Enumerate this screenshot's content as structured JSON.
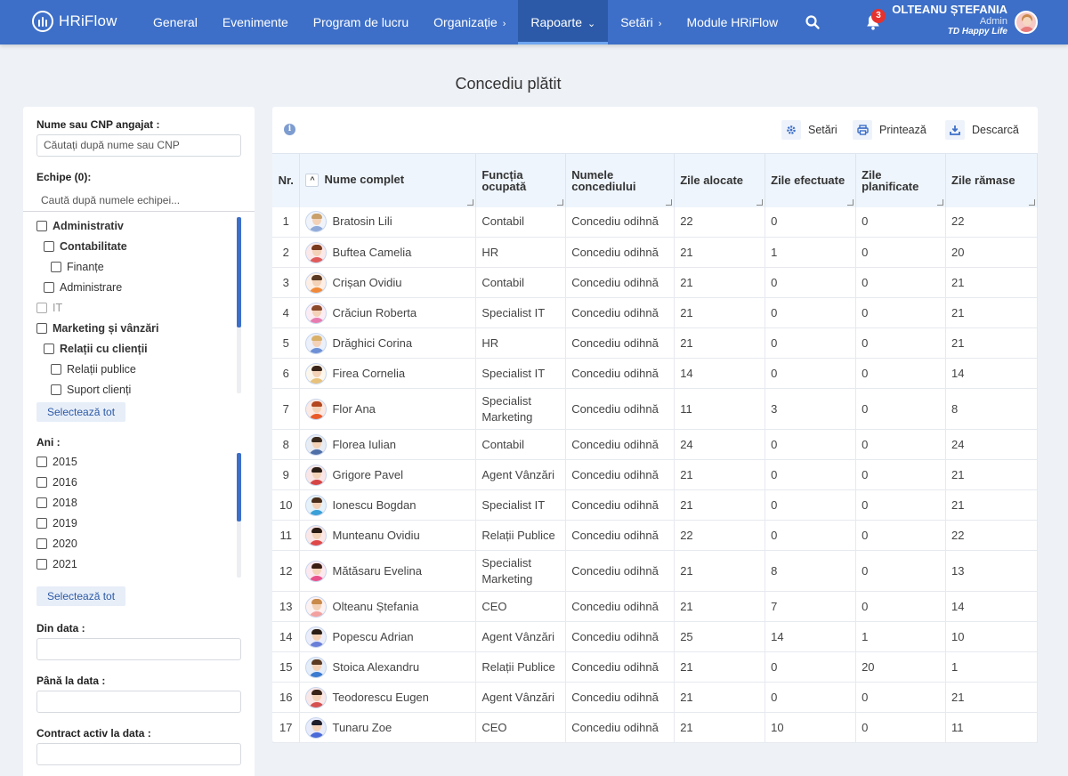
{
  "app": {
    "name": "HRiFlow"
  },
  "nav": {
    "items": [
      {
        "label": "General",
        "chev": ""
      },
      {
        "label": "Evenimente",
        "chev": ""
      },
      {
        "label": "Program de lucru",
        "chev": ""
      },
      {
        "label": "Organizație",
        "chev": "›"
      },
      {
        "label": "Rapoarte",
        "chev": "⌄"
      },
      {
        "label": "Setări",
        "chev": "›"
      },
      {
        "label": "Module HRiFlow",
        "chev": ""
      }
    ],
    "active": "Rapoarte",
    "notifications": "3"
  },
  "user": {
    "name": "OLTEANU ȘTEFANIA",
    "role": "Admin",
    "org": "TD Happy Life"
  },
  "page": {
    "title": "Concediu plătit"
  },
  "filters": {
    "employee_label": "Nume sau CNP angajat :",
    "employee_placeholder": "Căutați după nume sau CNP",
    "teams_label": "Echipe (0):",
    "teams_placeholder": "Caută după numele echipei...",
    "teams": [
      {
        "label": "Administrativ",
        "level": 0,
        "bold": true,
        "disabled": false
      },
      {
        "label": "Contabilitate",
        "level": 1,
        "bold": true,
        "disabled": false
      },
      {
        "label": "Finanțe",
        "level": 2,
        "bold": false,
        "disabled": false
      },
      {
        "label": "Administrare",
        "level": 1,
        "bold": false,
        "disabled": false
      },
      {
        "label": "IT",
        "level": 0,
        "bold": false,
        "disabled": true
      },
      {
        "label": "Marketing și vânzări",
        "level": 0,
        "bold": true,
        "disabled": false
      },
      {
        "label": "Relații cu clienții",
        "level": 1,
        "bold": true,
        "disabled": false
      },
      {
        "label": "Relații publice",
        "level": 2,
        "bold": false,
        "disabled": false
      },
      {
        "label": "Suport clienți",
        "level": 2,
        "bold": false,
        "disabled": false
      }
    ],
    "select_all": "Selectează tot",
    "years_label": "Ani :",
    "years": [
      "2015",
      "2016",
      "2018",
      "2019",
      "2020",
      "2021"
    ],
    "from_label": "Din data :",
    "to_label": "Până la data :",
    "contract_label": "Contract activ la data :"
  },
  "toolbar": {
    "settings": "Setări",
    "print": "Printează",
    "download": "Descarcă"
  },
  "table": {
    "headers": {
      "nr": "Nr.",
      "name": "Nume complet",
      "function": "Funcția ocupată",
      "leave": "Numele concediului",
      "allocated": "Zile alocate",
      "done": "Zile efectuate",
      "planned": "Zile planificate",
      "remaining": "Zile rămase"
    },
    "rows": [
      {
        "nr": "1",
        "name": "Bratosin Lili",
        "function": "Contabil",
        "leave": "Concediu odihnă",
        "allocated": "22",
        "done": "0",
        "planned": "0",
        "remaining": "22",
        "av": "#8fa9d8",
        "hair": "#c9a06a"
      },
      {
        "nr": "2",
        "name": "Buftea Camelia",
        "function": "HR",
        "leave": "Concediu odihnă",
        "allocated": "21",
        "done": "1",
        "planned": "0",
        "remaining": "20",
        "av": "#e05a5a",
        "hair": "#7a3a1d"
      },
      {
        "nr": "3",
        "name": "Crișan Ovidiu",
        "function": "Contabil",
        "leave": "Concediu odihnă",
        "allocated": "21",
        "done": "0",
        "planned": "0",
        "remaining": "21",
        "av": "#f08a3a",
        "hair": "#5a3a22"
      },
      {
        "nr": "4",
        "name": "Crăciun Roberta",
        "function": "Specialist IT",
        "leave": "Concediu odihnă",
        "allocated": "21",
        "done": "0",
        "planned": "0",
        "remaining": "21",
        "av": "#e77bb0",
        "hair": "#8b4a2a"
      },
      {
        "nr": "5",
        "name": "Drăghici Corina",
        "function": "HR",
        "leave": "Concediu odihnă",
        "allocated": "21",
        "done": "0",
        "planned": "0",
        "remaining": "21",
        "av": "#6c8fd6",
        "hair": "#d9b06a"
      },
      {
        "nr": "6",
        "name": "Firea Cornelia",
        "function": "Specialist IT",
        "leave": "Concediu odihnă",
        "allocated": "14",
        "done": "0",
        "planned": "0",
        "remaining": "14",
        "av": "#e8c27a",
        "hair": "#3a2418"
      },
      {
        "nr": "7",
        "name": "Flor Ana",
        "function": "Specialist Marketing",
        "leave": "Concediu odihnă",
        "allocated": "11",
        "done": "3",
        "planned": "0",
        "remaining": "8",
        "av": "#e85a2a",
        "hair": "#b4471e"
      },
      {
        "nr": "8",
        "name": "Florea Iulian",
        "function": "Contabil",
        "leave": "Concediu odihnă",
        "allocated": "24",
        "done": "0",
        "planned": "0",
        "remaining": "24",
        "av": "#4f6fa8",
        "hair": "#3a2a1e"
      },
      {
        "nr": "9",
        "name": "Grigore Pavel",
        "function": "Agent Vânzări",
        "leave": "Concediu odihnă",
        "allocated": "21",
        "done": "0",
        "planned": "0",
        "remaining": "21",
        "av": "#d64545",
        "hair": "#2a1e16"
      },
      {
        "nr": "10",
        "name": "Ionescu Bogdan",
        "function": "Specialist IT",
        "leave": "Concediu odihnă",
        "allocated": "21",
        "done": "0",
        "planned": "0",
        "remaining": "21",
        "av": "#3aa0d8",
        "hair": "#4a2e1a"
      },
      {
        "nr": "11",
        "name": "Munteanu Ovidiu",
        "function": "Relații Publice",
        "leave": "Concediu odihnă",
        "allocated": "22",
        "done": "0",
        "planned": "0",
        "remaining": "22",
        "av": "#e04848",
        "hair": "#2a1a12"
      },
      {
        "nr": "12",
        "name": "Mătăsaru Evelina",
        "function": "Specialist Marketing",
        "leave": "Concediu odihnă",
        "allocated": "21",
        "done": "8",
        "planned": "0",
        "remaining": "13",
        "av": "#e8508a",
        "hair": "#3a1e14"
      },
      {
        "nr": "13",
        "name": "Olteanu Ștefania",
        "function": "CEO",
        "leave": "Concediu odihnă",
        "allocated": "21",
        "done": "7",
        "planned": "0",
        "remaining": "14",
        "av": "#f2a0a0",
        "hair": "#c98a4a"
      },
      {
        "nr": "14",
        "name": "Popescu Adrian",
        "function": "Agent Vânzări",
        "leave": "Concediu odihnă",
        "allocated": "25",
        "done": "14",
        "planned": "1",
        "remaining": "10",
        "av": "#6a7fd8",
        "hair": "#2a1e16"
      },
      {
        "nr": "15",
        "name": "Stoica Alexandru",
        "function": "Relații Publice",
        "leave": "Concediu odihnă",
        "allocated": "21",
        "done": "0",
        "planned": "20",
        "remaining": "1",
        "av": "#3a7ad0",
        "hair": "#5a3a22"
      },
      {
        "nr": "16",
        "name": "Teodorescu Eugen",
        "function": "Agent Vânzări",
        "leave": "Concediu odihnă",
        "allocated": "21",
        "done": "0",
        "planned": "0",
        "remaining": "21",
        "av": "#d65050",
        "hair": "#3a2418"
      },
      {
        "nr": "17",
        "name": "Tunaru Zoe",
        "function": "CEO",
        "leave": "Concediu odihnă",
        "allocated": "21",
        "done": "10",
        "planned": "0",
        "remaining": "11",
        "av": "#4a6ad8",
        "hair": "#1e1e2a"
      }
    ]
  },
  "colors": {
    "primary": "#3d6fc8",
    "active_nav": "#2c5aa8",
    "badge": "#e5322f",
    "header_bg": "#eef5fc"
  }
}
